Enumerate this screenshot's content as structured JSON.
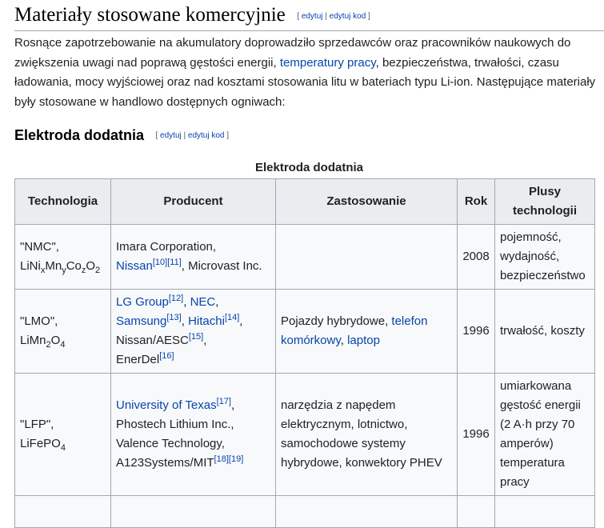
{
  "section": {
    "title": "Materiały stosowane komercyjnie",
    "edit_open": "[",
    "edit_label": "edytuj",
    "edit_sep": "|",
    "edit_code_label": "edytuj kod",
    "edit_close": "]"
  },
  "paragraph": {
    "part1": "Rosnące zapotrzebowanie na akumulatory doprowadziło sprzedawców oraz pracowników naukowych do zwiększenia uwagi nad poprawą gęstości energii, ",
    "link_temperatures": "temperatury pracy",
    "part2": ", bezpieczeństwa, trwałości, czasu ładowania, mocy wyjściowej oraz nad kosztami stosowania litu w bateriach typu Li-ion. Następujące materiały były stosowane w handlowo dostępnych ogniwach:"
  },
  "subsection": {
    "title": "Elektroda dodatnia",
    "edit_open": "[",
    "edit_label": "edytuj",
    "edit_sep": "|",
    "edit_code_label": "edytuj kod",
    "edit_close": "]"
  },
  "table": {
    "caption": "Elektroda dodatnia",
    "headers": {
      "tech": "Technologia",
      "producer": "Producent",
      "usage": "Zastosowanie",
      "year": "Rok",
      "plus": "Plusy technologii"
    },
    "rows": [
      {
        "tech_name": "\"NMC\",",
        "formula": {
          "li": "LiNi",
          "x": "x",
          "mn": "Mn",
          "y": "y",
          "co": "Co",
          "z": "z",
          "o": "O",
          "two": "2"
        },
        "producer_1": "Imara Corporation,",
        "producer_link": "Nissan",
        "ref_a": "[10]",
        "ref_b": "[11]",
        "producer_tail": ", Microvast Inc.",
        "usage": "",
        "year": "2008",
        "plus": "pojemność, wydajność, bezpieczeństwo"
      },
      {
        "tech_name": "\"LMO\",",
        "formula": {
          "a": "LiMn",
          "b": "2",
          "c": "O",
          "d": "4"
        },
        "p_lg": "LG Group",
        "ref_12": "[12]",
        "sep1": ", ",
        "p_nec": "NEC",
        "sep2": ",",
        "p_samsung": "Samsung",
        "ref_13": "[13]",
        "sep3": ", ",
        "p_hitachi": "Hitachi",
        "ref_14": "[14]",
        "sep4": ",",
        "p_nissan": "Nissan/AESC",
        "ref_15": "[15]",
        "sep5": ",",
        "p_enerdel": "EnerDel",
        "ref_16": "[16]",
        "usage_1": "Pojazdy hybrydowe, ",
        "usage_link1": "telefon komórkowy",
        "usage_sep": ", ",
        "usage_link2": "laptop",
        "year": "1996",
        "plus": "trwałość, koszty"
      },
      {
        "tech_name": "\"LFP\",",
        "formula": {
          "a": "LiFePO",
          "b": "4"
        },
        "p_ut": "University of Texas",
        "ref_17": "[17]",
        "sep1": ",",
        "p_phostech": "Phostech Lithium Inc.,",
        "p_valence": "Valence Technology,",
        "p_a123": "A123Systems/MIT",
        "ref_18": "[18]",
        "ref_19": "[19]",
        "usage": "narzędzia z napędem elektrycznym, lotnictwo, samochodowe systemy hybrydowe, konwektory PHEV",
        "year": "1996",
        "plus": "umiarkowana gęstość energii (2 A·h przy 70 amperów) temperatura pracy"
      }
    ]
  }
}
